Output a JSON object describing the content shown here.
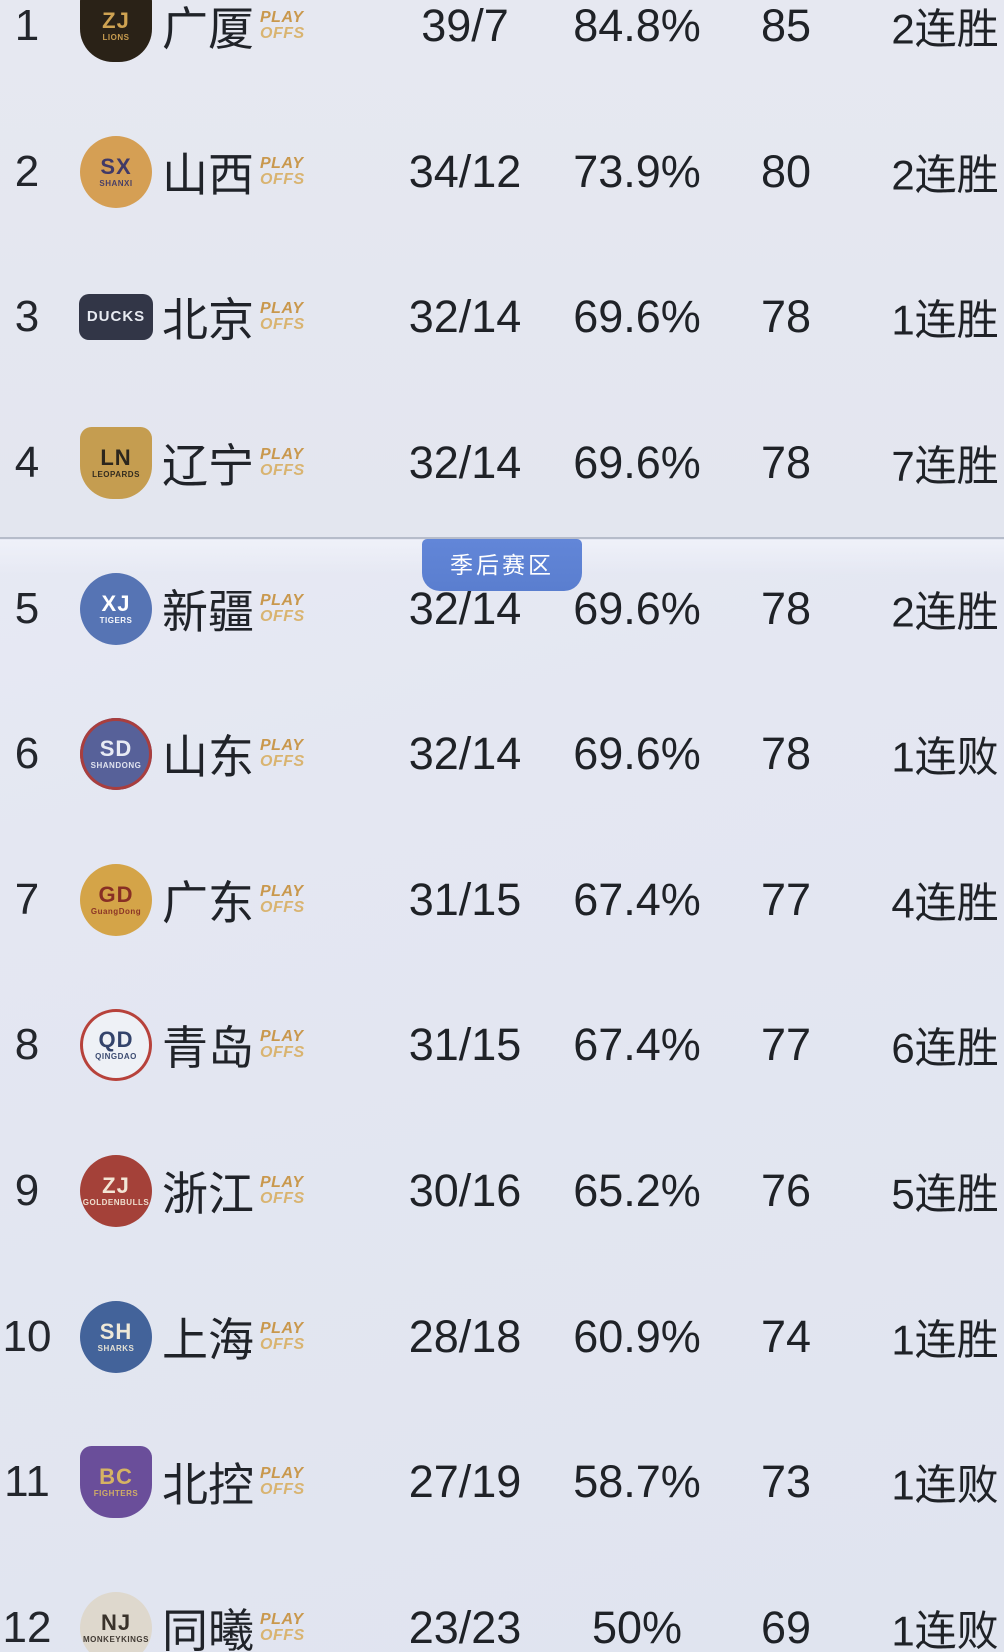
{
  "page": {
    "background_color": "#e4e7f2",
    "text_color": "#202329",
    "gold_color": "#c9984d"
  },
  "divider": {
    "label": "季后赛区",
    "badge_color": "#5d80d2",
    "line_color": "#b6bcca"
  },
  "playoff_tag": {
    "line1": "PLAY",
    "line2": "OFFS"
  },
  "standings": [
    {
      "rank": "1",
      "team": "广厦",
      "record": "39/7",
      "win_pct": "84.8%",
      "points": "85",
      "streak": "2连胜",
      "logo": {
        "name": "zhejiang-guangsha-lions-logo",
        "shape": "shield",
        "glyph": "ZJ",
        "band": "LIONS",
        "bg": "#2b2216",
        "fg": "#d3a34b"
      }
    },
    {
      "rank": "2",
      "team": "山西",
      "record": "34/12",
      "win_pct": "73.9%",
      "points": "80",
      "streak": "2连胜",
      "logo": {
        "name": "shanxi-loongs-logo",
        "shape": "circle",
        "glyph": "SX",
        "band": "SHANXI",
        "bg": "#d99e4d",
        "fg": "#413a6b"
      }
    },
    {
      "rank": "3",
      "team": "北京",
      "record": "32/14",
      "win_pct": "69.6%",
      "points": "78",
      "streak": "1连胜",
      "logo": {
        "name": "beijing-ducks-logo",
        "shape": "wide",
        "glyph": "DUCKS",
        "band": "",
        "bg": "#323648",
        "fg": "#e7eaf2"
      }
    },
    {
      "rank": "4",
      "team": "辽宁",
      "record": "32/14",
      "win_pct": "69.6%",
      "points": "78",
      "streak": "7连胜",
      "logo": {
        "name": "liaoning-flying-leopards-logo",
        "shape": "shield",
        "glyph": "LN",
        "band": "LEOPARDS",
        "bg": "#c89d49",
        "fg": "#2c261c"
      }
    },
    {
      "rank": "5",
      "team": "新疆",
      "record": "32/14",
      "win_pct": "69.6%",
      "points": "78",
      "streak": "2连胜",
      "logo": {
        "name": "xinjiang-flying-tigers-logo",
        "shape": "circle",
        "glyph": "XJ",
        "band": "TIGERS",
        "bg": "#5474ba",
        "fg": "#ffffff"
      }
    },
    {
      "rank": "6",
      "team": "山东",
      "record": "32/14",
      "win_pct": "69.6%",
      "points": "78",
      "streak": "1连败",
      "logo": {
        "name": "shandong-heroes-logo",
        "shape": "circle",
        "glyph": "SD",
        "band": "SHANDONG",
        "bg": "#56619e",
        "fg": "#e8ebf5",
        "ring": "#b03c3c"
      }
    },
    {
      "rank": "7",
      "team": "广东",
      "record": "31/15",
      "win_pct": "67.4%",
      "points": "77",
      "streak": "4连胜",
      "logo": {
        "name": "guangdong-southern-tigers-logo",
        "shape": "circle",
        "glyph": "GD",
        "band": "GuangDong",
        "bg": "#d8a440",
        "fg": "#8e2d22"
      }
    },
    {
      "rank": "8",
      "team": "青岛",
      "record": "31/15",
      "win_pct": "67.4%",
      "points": "77",
      "streak": "6连胜",
      "logo": {
        "name": "qingdao-eagles-logo",
        "shape": "circle",
        "glyph": "QD",
        "band": "QINGDAO",
        "bg": "#eef1f6",
        "fg": "#32436e",
        "ring": "#bf4038"
      }
    },
    {
      "rank": "9",
      "team": "浙江",
      "record": "30/16",
      "win_pct": "65.2%",
      "points": "76",
      "streak": "5连胜",
      "logo": {
        "name": "zhejiang-golden-bulls-logo",
        "shape": "circle",
        "glyph": "ZJ",
        "band": "GOLDENBULLS",
        "bg": "#ab3f36",
        "fg": "#f3e6d4"
      }
    },
    {
      "rank": "10",
      "team": "上海",
      "record": "28/18",
      "win_pct": "60.9%",
      "points": "74",
      "streak": "1连胜",
      "logo": {
        "name": "shanghai-sharks-logo",
        "shape": "circle",
        "glyph": "SH",
        "band": "SHARKS",
        "bg": "#40639f",
        "fg": "#efe9d6"
      }
    },
    {
      "rank": "11",
      "team": "北控",
      "record": "27/19",
      "win_pct": "58.7%",
      "points": "73",
      "streak": "1连败",
      "logo": {
        "name": "beijing-royal-fighters-logo",
        "shape": "shield",
        "glyph": "BC",
        "band": "FIGHTERS",
        "bg": "#6b4da0",
        "fg": "#d9b35c"
      }
    },
    {
      "rank": "12",
      "team": "同曦",
      "record": "23/23",
      "win_pct": "50%",
      "points": "69",
      "streak": "1连败",
      "logo": {
        "name": "nanjing-monkey-kings-logo",
        "shape": "circle",
        "glyph": "NJ",
        "band": "MONKEYKINGS",
        "bg": "#ded8cc",
        "fg": "#3a322a"
      }
    }
  ]
}
